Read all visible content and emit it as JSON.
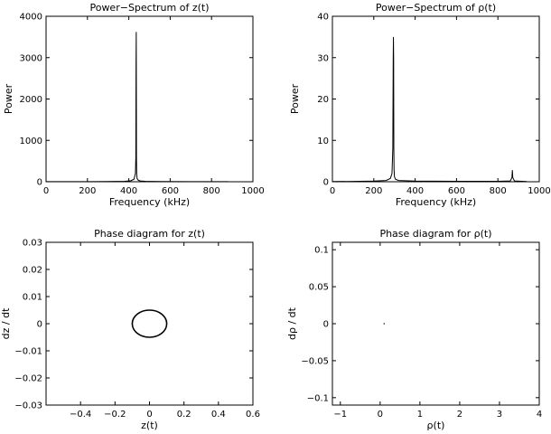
{
  "chart_data": [
    {
      "type": "line",
      "title": "Power−Spectrum of z(t)",
      "xlabel": "Frequency (kHz)",
      "ylabel": "Power",
      "xlim": [
        0,
        1000
      ],
      "ylim": [
        0,
        4000
      ],
      "xticks": [
        0,
        200,
        400,
        600,
        800,
        1000
      ],
      "xtick_labels": [
        "0",
        "200",
        "400",
        "600",
        "800",
        "1000"
      ],
      "yticks": [
        0,
        1000,
        2000,
        3000,
        4000
      ],
      "ytick_labels": [
        "0",
        "1000",
        "2000",
        "3000",
        "4000"
      ],
      "grid": false,
      "series": [
        {
          "x": [
            0,
            100,
            200,
            300,
            380,
            410,
            425,
            432,
            434,
            435,
            436,
            437,
            438,
            440,
            445,
            455,
            480,
            550,
            700,
            880
          ],
          "y": [
            2,
            3,
            4,
            6,
            12,
            25,
            60,
            200,
            600,
            2800,
            3620,
            600,
            200,
            80,
            40,
            20,
            10,
            5,
            3,
            2
          ]
        }
      ]
    },
    {
      "type": "line",
      "title": "Power−Spectrum of ρ(t)",
      "xlabel": "Frequency (kHz)",
      "ylabel": "Power",
      "xlim": [
        0,
        1000
      ],
      "ylim": [
        0,
        40
      ],
      "xticks": [
        0,
        200,
        400,
        600,
        800,
        1000
      ],
      "xtick_labels": [
        "0",
        "200",
        "400",
        "600",
        "800",
        "1000"
      ],
      "yticks": [
        0,
        10,
        20,
        30,
        40
      ],
      "ytick_labels": [
        "0",
        "10",
        "20",
        "30",
        "40"
      ],
      "grid": false,
      "series": [
        {
          "x": [
            0,
            100,
            200,
            260,
            280,
            288,
            292,
            294,
            295,
            296,
            297,
            298,
            300,
            305,
            320,
            400,
            600,
            800,
            860,
            868,
            870,
            872,
            880,
            940
          ],
          "y": [
            0.05,
            0.08,
            0.15,
            0.3,
            0.8,
            2,
            8,
            30,
            35,
            30,
            8,
            3,
            1.2,
            0.6,
            0.3,
            0.15,
            0.1,
            0.1,
            0.2,
            1,
            2.8,
            1,
            0.2,
            0.05
          ]
        }
      ]
    },
    {
      "type": "line",
      "title": "Phase diagram for z(t)",
      "xlabel": "z(t)",
      "ylabel": "dz / dt",
      "xlim": [
        -0.6,
        0.6
      ],
      "ylim": [
        -0.03,
        0.03
      ],
      "xticks": [
        -0.4,
        -0.2,
        0,
        0.2,
        0.4,
        0.6
      ],
      "xtick_labels": [
        "−0.4",
        "−0.2",
        "0",
        "0.2",
        "0.4",
        "0.6"
      ],
      "yticks": [
        -0.03,
        -0.02,
        -0.01,
        0,
        0.01,
        0.02,
        0.03
      ],
      "ytick_labels": [
        "−0.03",
        "−0.02",
        "−0.01",
        "0",
        "0.01",
        "0.02",
        "0.03"
      ],
      "grid": false,
      "ellipse": {
        "cx": 0,
        "cy": 0,
        "rx": 0.1,
        "ry": 0.005
      }
    },
    {
      "type": "scatter",
      "title": "Phase diagram for ρ(t)",
      "xlabel": "ρ(t)",
      "ylabel": "dρ / dt",
      "xlim": [
        -1.2,
        4
      ],
      "ylim": [
        -0.11,
        0.11
      ],
      "xticks": [
        -1,
        0,
        1,
        2,
        3,
        4
      ],
      "xtick_labels": [
        "−1",
        "0",
        "1",
        "2",
        "3",
        "4"
      ],
      "yticks": [
        -0.1,
        -0.05,
        0,
        0.05,
        0.1
      ],
      "ytick_labels": [
        "−0.1",
        "−0.05",
        "0",
        "0.05",
        "0.1"
      ],
      "grid": false,
      "points": [
        {
          "x": 0.1,
          "y": 0
        }
      ]
    }
  ]
}
